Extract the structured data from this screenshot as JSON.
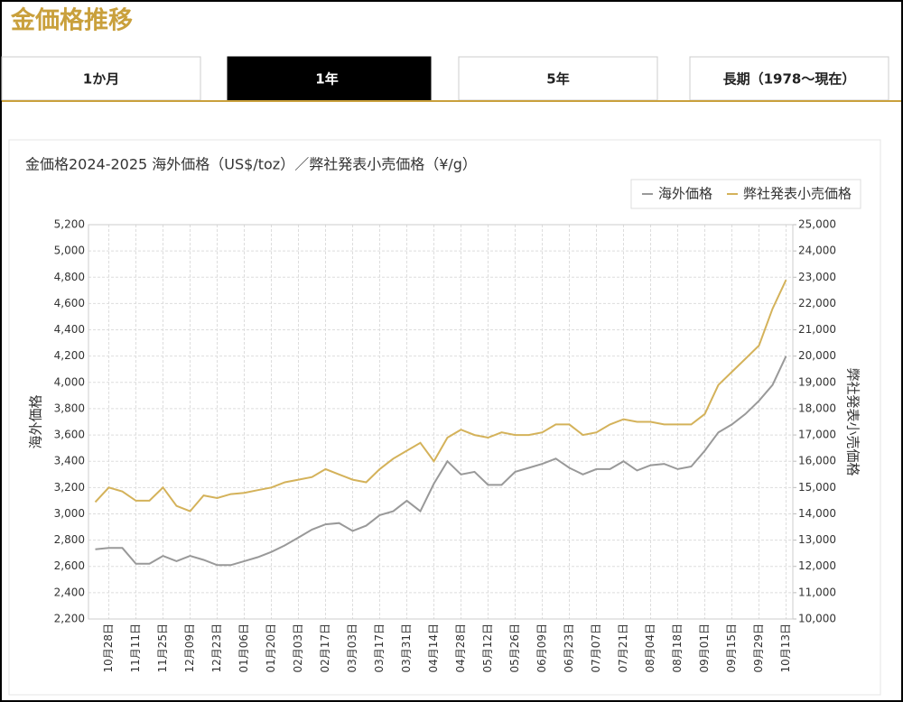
{
  "header": {
    "title": "金価格推移"
  },
  "tabs": [
    {
      "label": "1か月"
    },
    {
      "label": "1年",
      "active": true
    },
    {
      "label": "5年"
    },
    {
      "label": "長期（1978〜現在）"
    }
  ],
  "chart_data": {
    "type": "line",
    "title": "金価格2024-2025 海外価格（US$/toz）／弊社発表小売価格（¥/g）",
    "y_label": "海外価格",
    "y2_label": "弊社発表小売価格",
    "categories": [
      null,
      "10月28日",
      null,
      "11月11日",
      null,
      "11月25日",
      null,
      "12月09日",
      null,
      "12月23日",
      null,
      "01月06日",
      null,
      "01月20日",
      null,
      "02月03日",
      null,
      "02月17日",
      null,
      "03月03日",
      null,
      "03月17日",
      null,
      "03月31日",
      null,
      "04月14日",
      null,
      "04月28日",
      null,
      "05月12日",
      null,
      "05月26日",
      null,
      "06月09日",
      null,
      "06月23日",
      null,
      "07月07日",
      null,
      "07月21日",
      null,
      "08月04日",
      null,
      "08月18日",
      null,
      "09月01日",
      null,
      "09月15日",
      null,
      "09月29日",
      null,
      "10月13日"
    ],
    "series": [
      {
        "name": "海外価格",
        "color": "#999999",
        "axis": "y",
        "values": [
          2730,
          2740,
          2740,
          2620,
          2620,
          2680,
          2640,
          2680,
          2650,
          2610,
          2610,
          2640,
          2670,
          2710,
          2760,
          2820,
          2880,
          2920,
          2930,
          2870,
          2910,
          2990,
          3020,
          3100,
          3020,
          3230,
          3400,
          3300,
          3320,
          3220,
          3220,
          3320,
          3350,
          3380,
          3420,
          3350,
          3300,
          3340,
          3340,
          3400,
          3330,
          3370,
          3380,
          3340,
          3360,
          3480,
          3620,
          3680,
          3760,
          3860,
          3980,
          4200
        ]
      },
      {
        "name": "弊社発表小売価格",
        "color": "#d4b25a",
        "axis": "y2",
        "values": [
          14450,
          15000,
          14850,
          14500,
          14500,
          15000,
          14300,
          14100,
          14700,
          14600,
          14750,
          14800,
          14900,
          15000,
          15200,
          15300,
          15400,
          15700,
          15500,
          15300,
          15200,
          15700,
          16100,
          16400,
          16700,
          16000,
          16900,
          17200,
          17000,
          16900,
          17100,
          17000,
          17000,
          17100,
          17400,
          17400,
          17000,
          17100,
          17400,
          17600,
          17500,
          17500,
          17400,
          17400,
          17400,
          17800,
          18900,
          19400,
          19900,
          20400,
          21800,
          22900
        ]
      }
    ],
    "ylim": [
      2200,
      5200
    ],
    "yticks": [
      {
        "value": 2200,
        "label": "2,200"
      },
      {
        "value": 2400,
        "label": "2,400"
      },
      {
        "value": 2600,
        "label": "2,600"
      },
      {
        "value": 2800,
        "label": "2,800"
      },
      {
        "value": 3000,
        "label": "3,000"
      },
      {
        "value": 3200,
        "label": "3,200"
      },
      {
        "value": 3400,
        "label": "3,400"
      },
      {
        "value": 3600,
        "label": "3,600"
      },
      {
        "value": 3800,
        "label": "3,800"
      },
      {
        "value": 4000,
        "label": "4,000"
      },
      {
        "value": 4200,
        "label": "4,200"
      },
      {
        "value": 4400,
        "label": "4,400"
      },
      {
        "value": 4600,
        "label": "4,600"
      },
      {
        "value": 4800,
        "label": "4,800"
      },
      {
        "value": 5000,
        "label": "5,000"
      },
      {
        "value": 5200,
        "label": "5,200"
      }
    ],
    "y2lim": [
      10000,
      25000
    ],
    "y2ticks": [
      {
        "value": 10000,
        "label": "10,000"
      },
      {
        "value": 11000,
        "label": "11,000"
      },
      {
        "value": 12000,
        "label": "12,000"
      },
      {
        "value": 13000,
        "label": "13,000"
      },
      {
        "value": 14000,
        "label": "14,000"
      },
      {
        "value": 15000,
        "label": "15,000"
      },
      {
        "value": 16000,
        "label": "16,000"
      },
      {
        "value": 17000,
        "label": "17,000"
      },
      {
        "value": 18000,
        "label": "18,000"
      },
      {
        "value": 19000,
        "label": "19,000"
      },
      {
        "value": 20000,
        "label": "20,000"
      },
      {
        "value": 21000,
        "label": "21,000"
      },
      {
        "value": 22000,
        "label": "22,000"
      },
      {
        "value": 23000,
        "label": "23,000"
      },
      {
        "value": 24000,
        "label": "24,000"
      },
      {
        "value": 25000,
        "label": "25,000"
      }
    ],
    "grid": true,
    "legend": "top-right"
  }
}
